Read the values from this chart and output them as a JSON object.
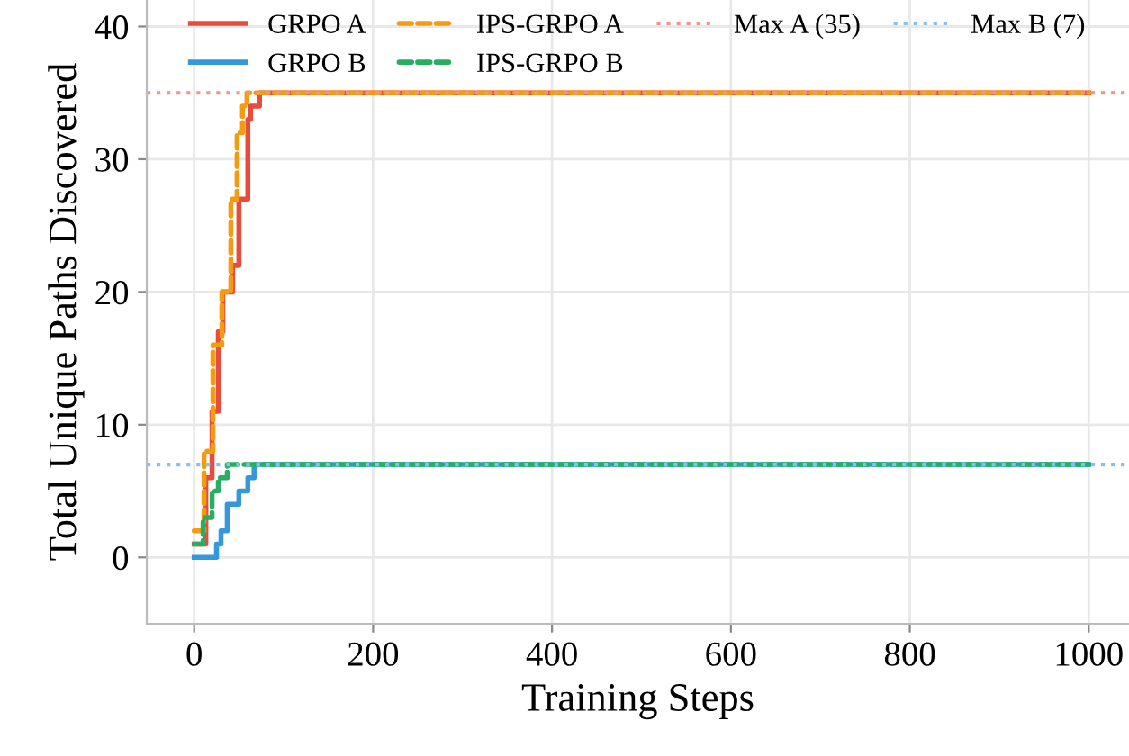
{
  "chart_data": {
    "type": "step",
    "xlabel": "Training Steps",
    "ylabel": "Total Unique Paths Discovered",
    "xlim": [
      -53,
      1045
    ],
    "xticks": [
      0,
      200,
      400,
      600,
      800,
      1000
    ],
    "ylim": [
      -5,
      42
    ],
    "yticks": [
      0,
      10,
      20,
      30,
      40
    ],
    "grid": true,
    "legend": "top",
    "marker": "none",
    "series": [
      {
        "name": "GRPO A",
        "color": "#e74c3c",
        "line_style": "solid",
        "x": [
          0,
          7,
          13,
          20,
          27,
          32,
          43,
          50,
          55,
          60,
          63,
          73,
          1000
        ],
        "values": [
          1,
          1,
          6,
          11,
          17,
          20,
          22,
          27,
          27,
          33,
          34,
          35,
          35
        ]
      },
      {
        "name": "GRPO B",
        "color": "#3498db",
        "line_style": "solid",
        "x": [
          0,
          25,
          30,
          37,
          50,
          60,
          67,
          1000
        ],
        "values": [
          0,
          1,
          2,
          4,
          5,
          6,
          7,
          7
        ]
      },
      {
        "name": "IPS-GRPO A",
        "color": "#f39c12",
        "line_style": "dashed",
        "x": [
          0,
          11,
          21,
          31,
          41,
          48,
          54,
          59,
          1000
        ],
        "values": [
          2,
          8,
          16,
          20,
          27,
          32,
          34,
          35,
          35
        ]
      },
      {
        "name": "IPS-GRPO B",
        "color": "#27ae60",
        "line_style": "dashed",
        "x": [
          0,
          10,
          20,
          27,
          37,
          1000
        ],
        "values": [
          1,
          3,
          5,
          6,
          7,
          7
        ]
      }
    ],
    "ref_lines": [
      {
        "axis": "y",
        "value": 35,
        "label": "Max A (35)",
        "color": "#f1948a",
        "line_style": "dotted"
      },
      {
        "axis": "y",
        "value": 7,
        "label": "Max B (7)",
        "color": "#85c1e9",
        "line_style": "dotted"
      }
    ]
  }
}
